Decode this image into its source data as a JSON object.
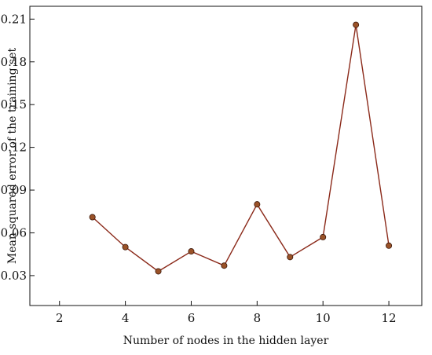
{
  "chart_data": {
    "type": "line",
    "xlabel": "Number of nodes in the hidden layer",
    "ylabel": "Mean squared error of the training set",
    "x": [
      3,
      4,
      5,
      6,
      7,
      8,
      9,
      10,
      11,
      12
    ],
    "series": [
      {
        "values": [
          0.071,
          0.05,
          0.033,
          0.047,
          0.037,
          0.08,
          0.043,
          0.057,
          0.206,
          0.051
        ]
      }
    ],
    "xlim": [
      1.1,
      13.0
    ],
    "ylim": [
      0.009,
      0.219
    ],
    "xticks": [
      2,
      4,
      6,
      8,
      10,
      12
    ],
    "xtick_labels": [
      "2",
      "4",
      "6",
      "8",
      "10",
      "12"
    ],
    "yticks": [
      0.03,
      0.06,
      0.09,
      0.12,
      0.15,
      0.18,
      0.21
    ],
    "ytick_labels": [
      "0.03",
      "0.06",
      "0.09",
      "0.12",
      "0.15",
      "0.18",
      "0.21"
    ],
    "grid": false,
    "legend": "none",
    "colors": {
      "line": "#8b2a1a",
      "marker": "#9a5228",
      "axis": "#111111"
    }
  }
}
